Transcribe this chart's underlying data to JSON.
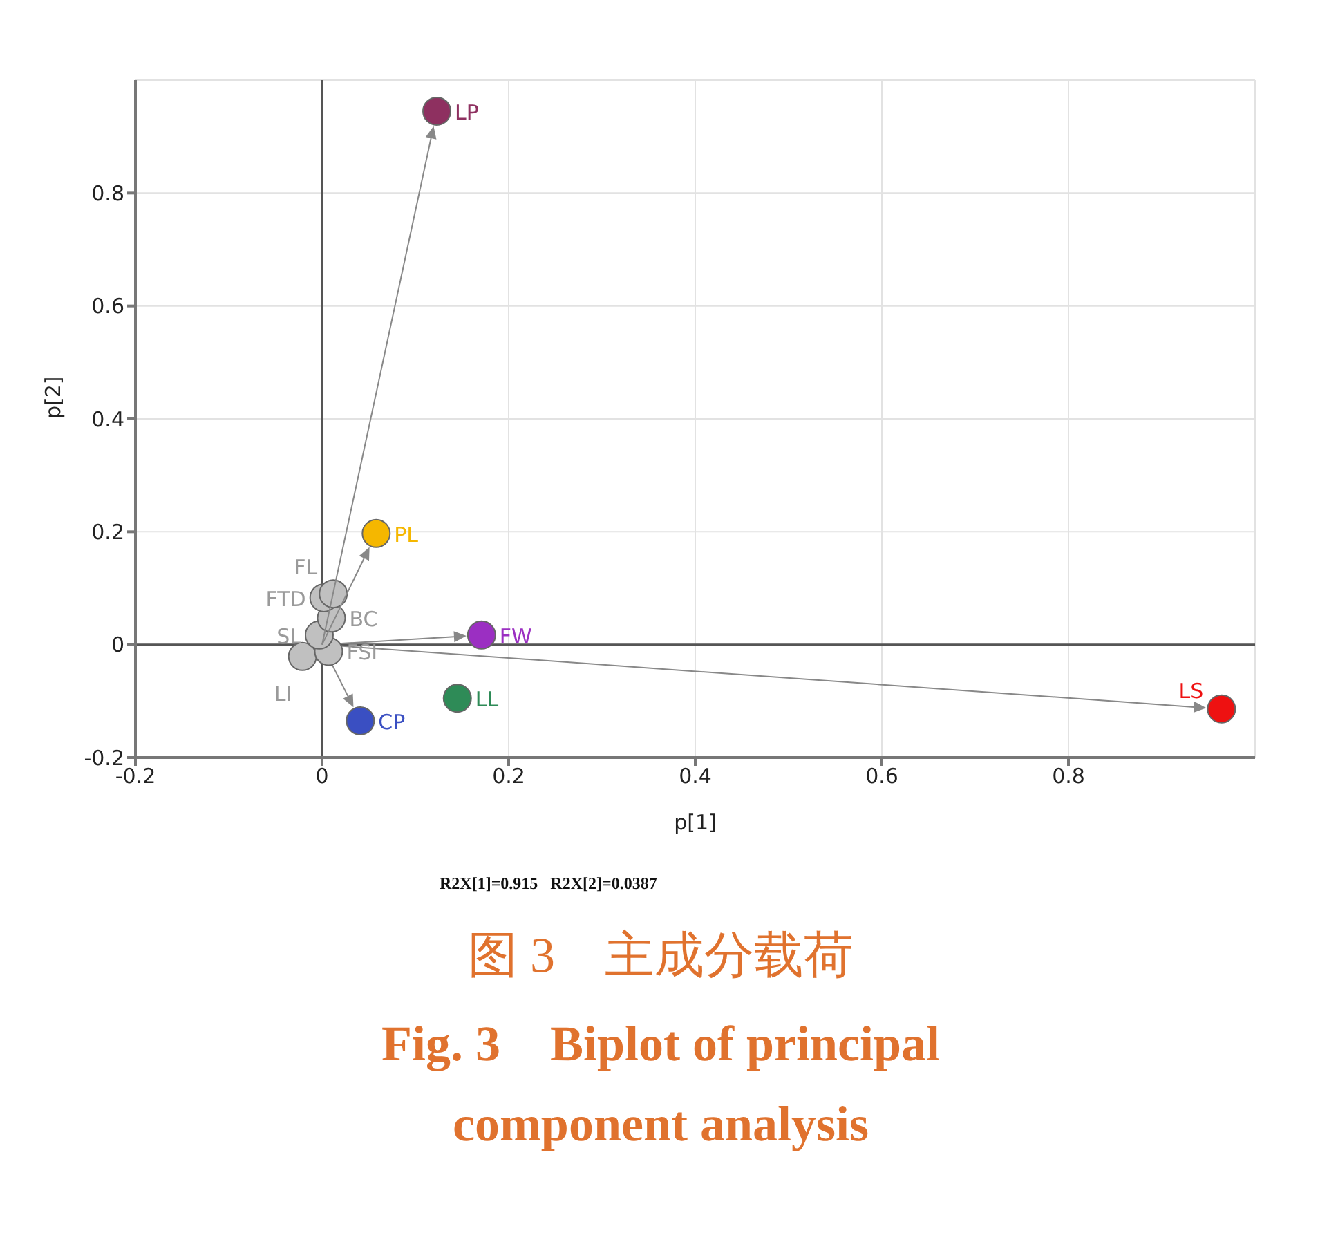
{
  "chart_data": {
    "type": "scatter",
    "title": "图 3　主成分载荷",
    "subtitle": "Fig. 3　Biplot of principal component analysis",
    "xlabel": "p[1]",
    "ylabel": "p[2]",
    "annotations": [
      "R2X[1]=0.915   R2X[2]=0.0387"
    ],
    "xlim": [
      -0.2,
      1
    ],
    "ylim": [
      -0.2,
      1
    ],
    "xticks": [
      -0.2,
      0,
      0.2,
      0.4,
      0.6,
      0.8
    ],
    "yticks": [
      -0.2,
      0,
      0.2,
      0.4,
      0.6,
      0.8
    ],
    "grid": true,
    "legend": false,
    "marker": "circle",
    "series": [
      {
        "name": "LP",
        "color": "#8e3060",
        "x": [
          0.123
        ],
        "values": [
          0.945
        ]
      },
      {
        "name": "PL",
        "color": "#f5b700",
        "x": [
          0.058
        ],
        "values": [
          0.197
        ]
      },
      {
        "name": "FL",
        "color": "#c0c0c0",
        "x": [
          0.012
        ],
        "values": [
          0.09
        ]
      },
      {
        "name": "FTD",
        "color": "#c0c0c0",
        "x": [
          0.002
        ],
        "values": [
          0.083
        ]
      },
      {
        "name": "BC",
        "color": "#c0c0c0",
        "x": [
          0.01
        ],
        "values": [
          0.047
        ]
      },
      {
        "name": "SL",
        "color": "#c0c0c0",
        "x": [
          -0.003
        ],
        "values": [
          0.017
        ]
      },
      {
        "name": "FSI",
        "color": "#c0c0c0",
        "x": [
          0.007
        ],
        "values": [
          -0.012
        ]
      },
      {
        "name": "LI",
        "color": "#c0c0c0",
        "x": [
          -0.021
        ],
        "values": [
          -0.021
        ]
      },
      {
        "name": "FW",
        "color": "#9b2fc2",
        "x": [
          0.171
        ],
        "values": [
          0.017
        ]
      },
      {
        "name": "LL",
        "color": "#2e8b57",
        "x": [
          0.145
        ],
        "values": [
          -0.095
        ]
      },
      {
        "name": "CP",
        "color": "#3a4fc2",
        "x": [
          0.041
        ],
        "values": [
          -0.135
        ]
      },
      {
        "name": "LS",
        "color": "#ee1111",
        "x": [
          0.964
        ],
        "values": [
          -0.114
        ]
      }
    ]
  }
}
